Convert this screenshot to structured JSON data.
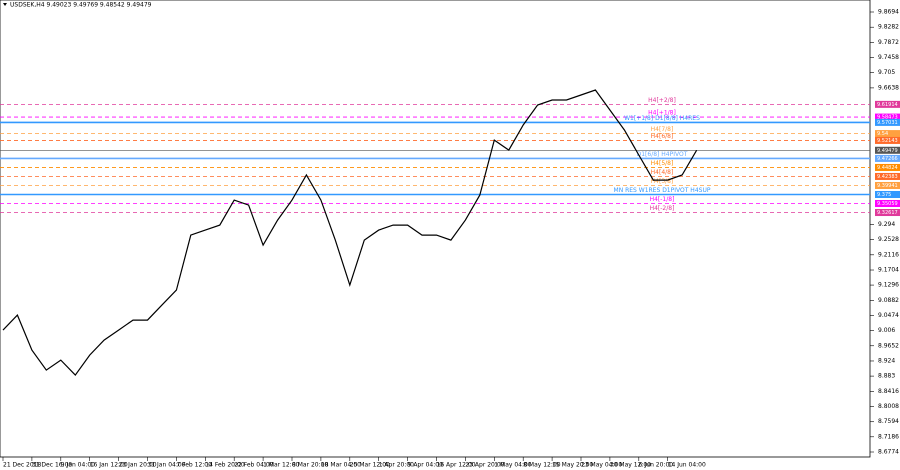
{
  "chart_data": {
    "type": "line",
    "title": "USDSEK,H4  9.49023 9.49769 9.48542 9.49479",
    "categories": [
      "21 Dec 2018",
      null,
      "31 Dec 16:00",
      null,
      "9 Jan 04:00",
      null,
      "16 Jan 12:00",
      null,
      "23 Jan 20:00",
      null,
      "31 Jan 04:00",
      null,
      "7 Feb 12:00",
      null,
      "14 Feb 20:00",
      null,
      "22 Feb 04:00",
      null,
      "1 Mar 12:00",
      null,
      "8 Mar 20:00",
      null,
      "18 Mar 04:00",
      null,
      "25 Mar 12:00",
      null,
      "1 Apr 20:00",
      null,
      "9 Apr 04:00",
      null,
      "16 Apr 12:00",
      null,
      "23 Apr 20:00",
      null,
      "1 May 04:00",
      null,
      "8 May 12:00",
      null,
      "15 May 20:00",
      null,
      "23 May 04:00",
      null,
      "30 May 12:00",
      null,
      "6 Jun 20:00",
      null,
      "14 Jun 04:00",
      null,
      null
    ],
    "series": [
      {
        "name": "USDSEK",
        "color": "#000000",
        "values": [
          9.0076,
          9.0483,
          8.9534,
          8.8992,
          8.9263,
          8.8857,
          8.9399,
          8.9805,
          9.0076,
          9.0347,
          9.0347,
          9.0754,
          9.116,
          9.2651,
          9.2786,
          9.2922,
          9.3599,
          9.3464,
          9.238,
          9.3057,
          9.3599,
          9.4277,
          9.3599,
          9.2515,
          9.1296,
          9.2515,
          9.2786,
          9.2922,
          9.2922,
          9.2651,
          9.2651,
          9.2515,
          9.3057,
          9.3735,
          9.5225,
          9.4954,
          9.5632,
          9.6174,
          9.6309,
          9.6309,
          9.6445,
          9.658,
          9.6038,
          9.5496,
          9.4819,
          9.4141,
          9.4141,
          9.4277,
          9.49479
        ]
      }
    ],
    "ylim": [
      8.6774,
      9.8694
    ],
    "yticks": [
      9.8694,
      9.8282,
      9.7872,
      9.7458,
      9.705,
      9.6638,
      9.294,
      9.2528,
      9.2116,
      9.1704,
      9.1296,
      9.0882,
      9.0474,
      9.006,
      8.9652,
      8.924,
      8.883,
      8.8416,
      8.8008,
      8.7594,
      8.7186,
      8.6774
    ],
    "levels": [
      {
        "label": "H4[+2/8]",
        "value": 9.61914,
        "color": "#e0399b",
        "dashed": true
      },
      {
        "label": "H4[+1/8]",
        "value": 9.58473,
        "color": "#ff00ff",
        "dashed": true
      },
      {
        "label": "W1[+1/8] D1[8/8] H4RES",
        "value": 9.57031,
        "color": "#3399ff",
        "dashed": false
      },
      {
        "label": "H4[7/8]",
        "value": 9.54,
        "color": "#ffa040",
        "dashed": true
      },
      {
        "label": "H4[6/8]",
        "value": 9.52143,
        "color": "#ff6a2a",
        "dashed": true
      },
      {
        "label": "D1[6/8] H4PIVOT",
        "value": 9.47266,
        "color": "#66aaff",
        "dashed": false
      },
      {
        "label": "H4[5/8]",
        "value": 9.44824,
        "color": "#ff8c00",
        "dashed": true
      },
      {
        "label": "H4[4/8]",
        "value": 9.42383,
        "color": "#ff6a2a",
        "dashed": true
      },
      {
        "label": "H4[3/8]",
        "value": 9.39941,
        "color": "#ffa040",
        "dashed": true
      },
      {
        "label": "MN RES W1RES D1PIVOT H4SUP",
        "value": 9.375,
        "color": "#3399ff",
        "dashed": false
      },
      {
        "label": "H4[-1/8]",
        "value": 9.35059,
        "color": "#ff00ff",
        "dashed": true
      },
      {
        "label": "H4[-2/8]",
        "value": 9.32617,
        "color": "#e0399b",
        "dashed": true
      }
    ],
    "last_price": 9.49479,
    "last_price_color": "#555555"
  }
}
